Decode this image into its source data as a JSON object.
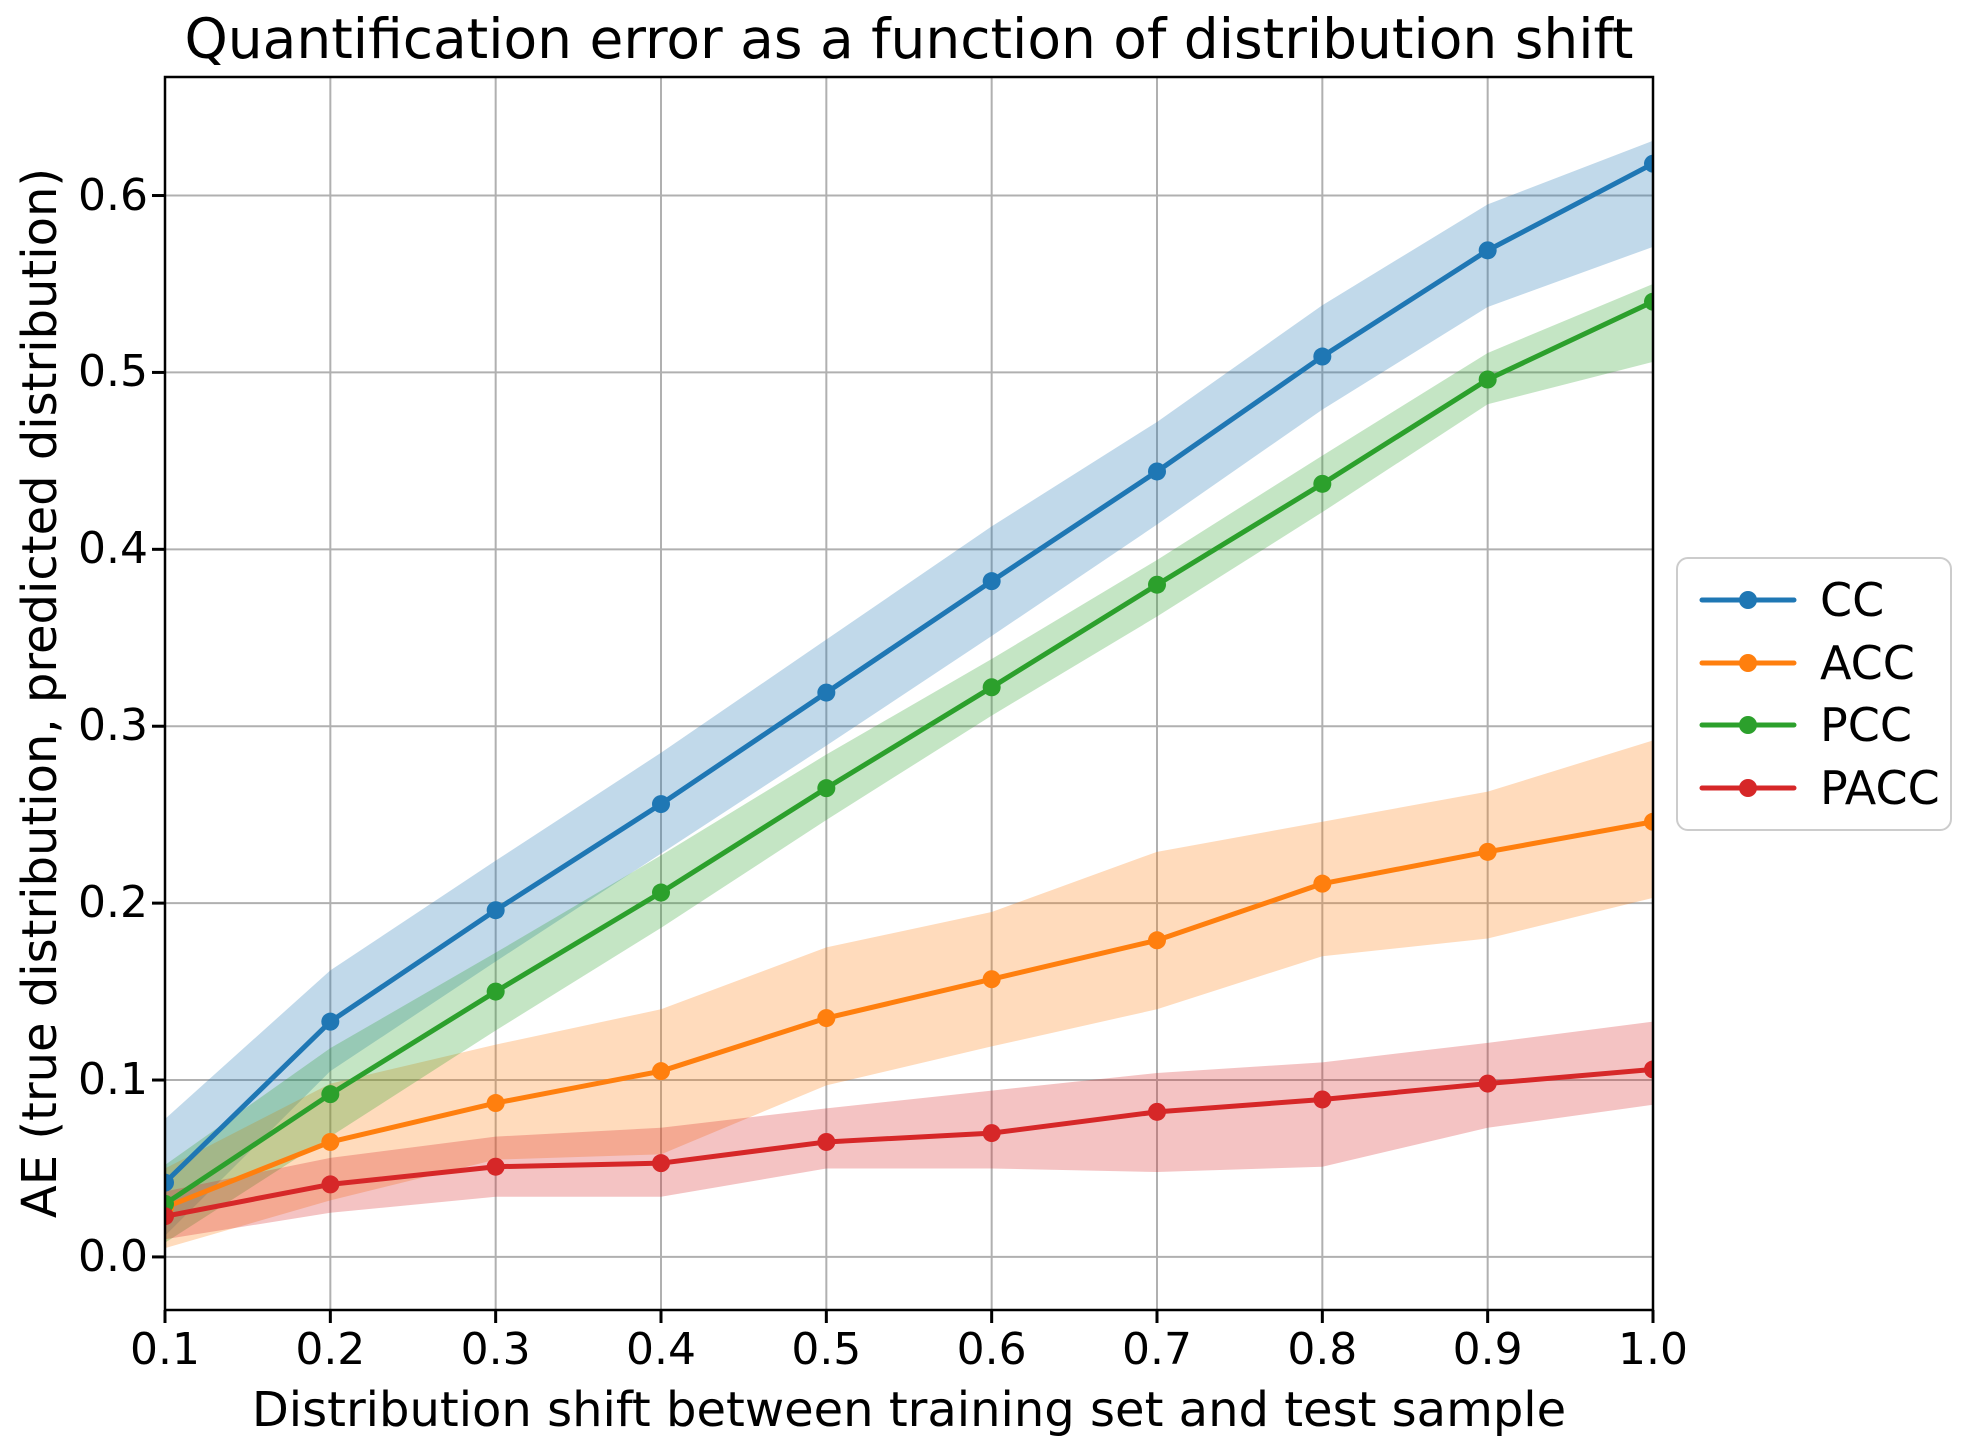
{
  "title": "Quantification error as a function of distribution shift",
  "xlabel": "Distribution shift between training set and test sample",
  "ylabel": "AE (true distribution, predicted distribution)",
  "chart_data": {
    "type": "line",
    "x": [
      0.1,
      0.2,
      0.3,
      0.4,
      0.5,
      0.6,
      0.7,
      0.8,
      0.9,
      1.0
    ],
    "x_tick_labels": [
      "0.1",
      "0.2",
      "0.3",
      "0.4",
      "0.5",
      "0.6",
      "0.7",
      "0.8",
      "0.9",
      "1.0"
    ],
    "y_ticks": [
      0.0,
      0.1,
      0.2,
      0.3,
      0.4,
      0.5,
      0.6
    ],
    "y_tick_labels": [
      "0.0",
      "0.1",
      "0.2",
      "0.3",
      "0.4",
      "0.5",
      "0.6"
    ],
    "xlim": [
      0.1,
      1.0
    ],
    "ylim": [
      -0.03,
      0.667
    ],
    "grid": true,
    "grid_color": "#b0b0b0",
    "band_opacity": 0.28,
    "legend_position": "outside-right",
    "series": [
      {
        "name": "CC",
        "color": "#1f77b4",
        "values": [
          0.042,
          0.133,
          0.196,
          0.256,
          0.319,
          0.382,
          0.444,
          0.509,
          0.569,
          0.618
        ],
        "band_lower": [
          0.012,
          0.105,
          0.167,
          0.228,
          0.289,
          0.351,
          0.414,
          0.479,
          0.537,
          0.571
        ],
        "band_upper": [
          0.078,
          0.162,
          0.224,
          0.285,
          0.349,
          0.413,
          0.472,
          0.538,
          0.595,
          0.631
        ]
      },
      {
        "name": "ACC",
        "color": "#ff7f0e",
        "values": [
          0.028,
          0.065,
          0.087,
          0.105,
          0.135,
          0.157,
          0.179,
          0.211,
          0.229,
          0.246
        ],
        "band_lower": [
          0.005,
          0.032,
          0.055,
          0.058,
          0.097,
          0.119,
          0.14,
          0.17,
          0.18,
          0.203
        ],
        "band_upper": [
          0.05,
          0.098,
          0.12,
          0.14,
          0.175,
          0.195,
          0.229,
          0.246,
          0.263,
          0.292
        ]
      },
      {
        "name": "PCC",
        "color": "#2ca02c",
        "values": [
          0.03,
          0.092,
          0.15,
          0.206,
          0.265,
          0.322,
          0.38,
          0.437,
          0.496,
          0.54
        ],
        "band_lower": [
          0.008,
          0.068,
          0.128,
          0.186,
          0.247,
          0.306,
          0.362,
          0.421,
          0.482,
          0.506
        ],
        "band_upper": [
          0.052,
          0.118,
          0.172,
          0.227,
          0.284,
          0.338,
          0.394,
          0.453,
          0.511,
          0.55
        ]
      },
      {
        "name": "PACC",
        "color": "#d62728",
        "values": [
          0.023,
          0.041,
          0.051,
          0.053,
          0.065,
          0.07,
          0.082,
          0.089,
          0.098,
          0.106
        ],
        "band_lower": [
          0.01,
          0.025,
          0.034,
          0.034,
          0.05,
          0.05,
          0.048,
          0.051,
          0.073,
          0.086
        ],
        "band_upper": [
          0.037,
          0.056,
          0.068,
          0.073,
          0.084,
          0.094,
          0.104,
          0.11,
          0.121,
          0.133
        ]
      }
    ]
  }
}
